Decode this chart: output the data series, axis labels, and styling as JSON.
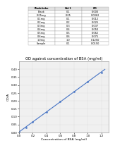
{
  "title": "OD against concentration of BSA (mg/ml)",
  "xlabel": "Concentration of BSA (mg/ml)",
  "ylabel": "OD/A",
  "scatter_x": [
    0.0,
    0.1,
    0.2,
    0.4,
    0.6,
    0.8,
    1.0,
    1.2
  ],
  "scatter_y": [
    0.005,
    0.03,
    0.065,
    0.13,
    0.195,
    0.26,
    0.32,
    0.38
  ],
  "xlim": [
    0,
    1.3
  ],
  "ylim": [
    0,
    0.45
  ],
  "xticks": [
    0,
    0.2,
    0.4,
    0.6,
    0.8,
    1.0,
    1.2
  ],
  "yticks": [
    0,
    0.05,
    0.1,
    0.15,
    0.2,
    0.25,
    0.3,
    0.35,
    0.4
  ],
  "table_col1": [
    "Flask/tube",
    "Blank",
    "0.05mg",
    "0.1mg",
    "0.2mg",
    "0.3mg",
    "0.4mg",
    "0.5mg",
    "0.6mg",
    "1.0mg",
    "Sample"
  ],
  "table_col2": [
    "Vol.1",
    "0.1",
    "0.05",
    "0.1",
    "0.2",
    "0.3",
    "0.4",
    "0.5",
    "0.6",
    "1.0",
    "0.1"
  ],
  "table_col3": [
    "OD",
    "0.000",
    "0.0062",
    "0.012",
    "0.025",
    "0.037",
    "0.050",
    "0.062",
    "0.075",
    "0.1250",
    "0.0150"
  ],
  "line_color": "#4472c4",
  "scatter_color": "#4472c4",
  "bg_color": "#ffffff",
  "plot_bg": "#f0f0f0",
  "title_fontsize": 3.8,
  "axis_fontsize": 3.2,
  "tick_fontsize": 2.8,
  "table_fontsize": 2.5
}
